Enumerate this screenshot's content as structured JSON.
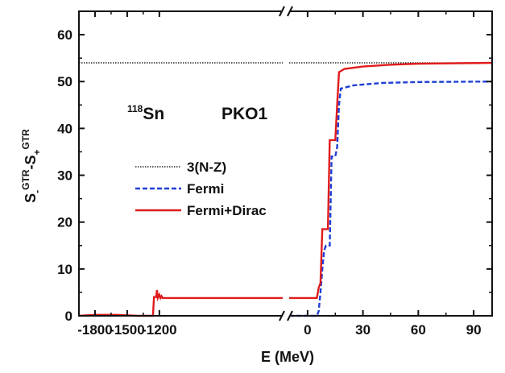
{
  "chart_data": {
    "type": "line",
    "xlabel": "E (MeV)",
    "ylabel": {
      "s1": "S",
      "sub1": "-",
      "sup1": "GTR",
      "dash": "-",
      "s2": "S",
      "sub2": "+",
      "sup2": "GTR"
    },
    "annotations": {
      "nucleus_mass": "118",
      "nucleus_symbol": "Sn",
      "model": "PKO1"
    },
    "ylim": [
      0,
      65
    ],
    "yticks": [
      0,
      10,
      20,
      30,
      40,
      50,
      60
    ],
    "x_break": true,
    "x_left_segment": {
      "range": [
        -1950,
        -50
      ],
      "ticks": [
        -1800,
        -1500,
        -1200
      ]
    },
    "x_right_segment": {
      "range": [
        -10,
        100
      ],
      "ticks": [
        0,
        30,
        60,
        90
      ]
    },
    "legend_placement": "center-left",
    "series": [
      {
        "name": "3(N-Z)",
        "color": "#000000",
        "style": "dotted",
        "left": [
          [
            -1950,
            54
          ],
          [
            -50,
            54
          ]
        ],
        "right": [
          [
            -10,
            54
          ],
          [
            100,
            54
          ]
        ]
      },
      {
        "name": "Fermi",
        "color": "#1f3fd6",
        "style": "dashed",
        "left": [],
        "right": [
          [
            -10,
            0
          ],
          [
            5,
            0
          ],
          [
            6,
            1
          ],
          [
            7,
            5
          ],
          [
            8,
            10
          ],
          [
            9,
            14
          ],
          [
            10,
            15
          ],
          [
            12,
            15
          ],
          [
            13,
            34
          ],
          [
            15,
            34
          ],
          [
            16,
            36
          ],
          [
            17,
            45
          ],
          [
            18,
            48.5
          ],
          [
            25,
            49.2
          ],
          [
            40,
            49.7
          ],
          [
            60,
            49.9
          ],
          [
            100,
            50
          ]
        ]
      },
      {
        "name": "Fermi+Dirac",
        "color": "#e01b1b",
        "style": "solid",
        "left": [
          [
            -1950,
            0
          ],
          [
            -1800,
            0.2
          ],
          [
            -1600,
            0.2
          ],
          [
            -1400,
            0
          ],
          [
            -1260,
            0
          ],
          [
            -1250,
            4
          ],
          [
            -1230,
            4
          ],
          [
            -1222,
            5.5
          ],
          [
            -1215,
            3.8
          ],
          [
            -1200,
            4.5
          ],
          [
            -1190,
            3.8
          ],
          [
            -1180,
            4.2
          ],
          [
            -1170,
            3.8
          ],
          [
            -1050,
            3.8
          ],
          [
            -50,
            3.8
          ]
        ],
        "right": [
          [
            -10,
            3.8
          ],
          [
            5,
            3.8
          ],
          [
            6,
            6
          ],
          [
            7,
            7
          ],
          [
            8,
            18.5
          ],
          [
            11,
            18.5
          ],
          [
            12,
            37.5
          ],
          [
            15,
            37.5
          ],
          [
            16,
            45
          ],
          [
            17,
            52
          ],
          [
            20,
            52.7
          ],
          [
            30,
            53.2
          ],
          [
            45,
            53.6
          ],
          [
            60,
            53.8
          ],
          [
            100,
            54
          ]
        ]
      }
    ]
  }
}
